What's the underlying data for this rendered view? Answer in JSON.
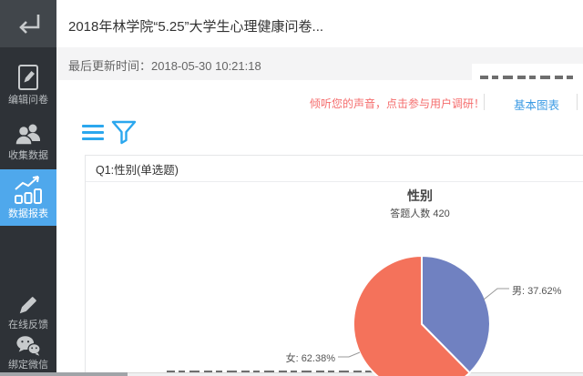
{
  "window": {
    "title": "2018年林学院“5.25”大学生心理健康问卷..."
  },
  "header": {
    "last_update": "最后更新时间：2018-05-30 10:21:18"
  },
  "toolbar": {
    "promo_text": "倾听您的声音，点击参与用户调研！",
    "chart_type_label": "基本图表",
    "icons": [
      "menu-icon",
      "filter-icon"
    ]
  },
  "sidebar": {
    "back_icon": "back-arrow-icon",
    "items": [
      {
        "label": "编辑问卷",
        "icon": "edit-doc-icon",
        "active": false
      },
      {
        "label": "收集数据",
        "icon": "collect-data-icon",
        "active": false
      },
      {
        "label": "数据报表",
        "icon": "data-report-icon",
        "active": true
      },
      {
        "label": "在线反馈",
        "icon": "feedback-pencil-icon",
        "active": false
      },
      {
        "label": "绑定微信",
        "icon": "wechat-icon",
        "active": false
      }
    ]
  },
  "question_card": {
    "header": "Q1:性别(单选题)"
  },
  "chart_data": {
    "type": "pie",
    "title": "性别",
    "subtitle": "答题人数 420",
    "respondents": 420,
    "start_angle": "top",
    "direction": "clockwise",
    "series": [
      {
        "name": "男",
        "value_pct": 37.62,
        "label": "男: 37.62%",
        "color": "#7081C1"
      },
      {
        "name": "女",
        "value_pct": 62.38,
        "label": "女: 62.38%",
        "color": "#F4725B"
      }
    ],
    "legend_position": "callout-labels"
  },
  "colors": {
    "sidebar_bg": "#2E3237",
    "sidebar_top_bg": "#41464B",
    "active_nav_blue": "#4FA8EC",
    "link_blue": "#3C9BE4",
    "icon_blue": "#2BA7EE",
    "promo_red": "#F56C6C",
    "pie_male": "#7081C1",
    "pie_female": "#F4725B",
    "subbar_gray": "#F4F4F5"
  }
}
